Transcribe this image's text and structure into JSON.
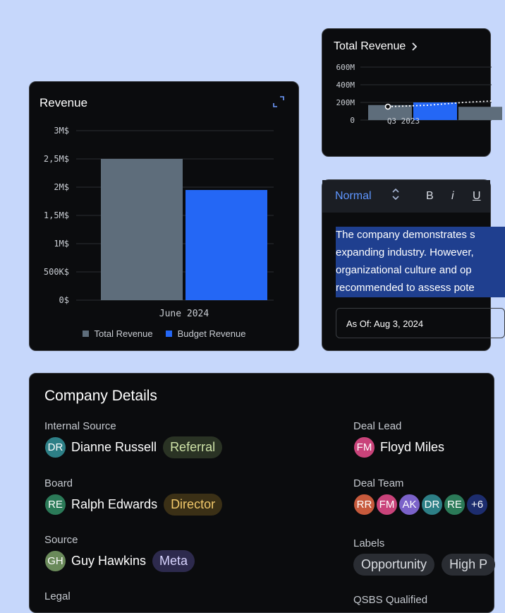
{
  "revenue_card": {
    "title": "Revenue",
    "expand_icon": "expand-icon",
    "legend": [
      {
        "label": "Total Revenue",
        "color": "#5e6d7b"
      },
      {
        "label": "Budget Revenue",
        "color": "#2467f5"
      }
    ]
  },
  "total_revenue_card": {
    "title": "Total Revenue",
    "chevron_icon": "chevron-right-icon"
  },
  "editor": {
    "style_label": "Normal",
    "bold_label": "B",
    "italic_label": "i",
    "underline_label": "U",
    "lines": [
      "The company demonstrates s",
      "expanding industry. However,",
      "organizational culture and op",
      "recommended to assess pote"
    ],
    "as_of": "As Of: Aug 3, 2024"
  },
  "company": {
    "title": "Company Details",
    "internal_source": {
      "label": "Internal Source",
      "initials": "DR",
      "name": "Dianne Russell",
      "tag": "Referral"
    },
    "board": {
      "label": "Board",
      "initials": "RE",
      "name": "Ralph Edwards",
      "tag": "Director"
    },
    "source": {
      "label": "Source",
      "initials": "GH",
      "name": "Guy Hawkins",
      "tag": "Meta"
    },
    "legal": {
      "label": "Legal"
    },
    "deal_lead": {
      "label": "Deal Lead",
      "initials": "FM",
      "name": "Floyd Miles"
    },
    "deal_team": {
      "label": "Deal Team",
      "members": [
        "RR",
        "FM",
        "AK",
        "DR",
        "RE"
      ],
      "more": "+6"
    },
    "labels": {
      "label": "Labels",
      "items": [
        "Opportunity",
        "High P"
      ]
    },
    "qsbs": {
      "label": "QSBS Qualified"
    }
  },
  "colors": {
    "total": "#5e6d7b",
    "budget": "#2467f5",
    "referral_bg": "#2a3324",
    "referral_fg": "#cfe3a8",
    "director_bg": "#3b3016",
    "director_fg": "#f2c96b",
    "meta_bg": "#2d2a4d",
    "meta_fg": "#d8d4ff"
  },
  "chart_data": [
    {
      "type": "bar",
      "title": "Revenue",
      "categories": [
        "June 2024"
      ],
      "series": [
        {
          "name": "Total Revenue",
          "values": [
            2.5
          ]
        },
        {
          "name": "Budget Revenue",
          "values": [
            1.95
          ]
        }
      ],
      "ylim": [
        0,
        3
      ],
      "yticks": [
        "0$",
        "500K$",
        "1M$",
        "1,5M$",
        "2M$",
        "2,5M$",
        "3M$"
      ],
      "grid": true,
      "legend": "bottom"
    },
    {
      "type": "bar",
      "title": "Total Revenue",
      "categories": [
        "Q3 2023"
      ],
      "series": [
        {
          "values": [
            170
          ]
        },
        {
          "values": [
            200
          ]
        },
        {
          "values": [
            150
          ]
        }
      ],
      "ylim": [
        0,
        600
      ],
      "yticks": [
        "0",
        "200M",
        "400M",
        "600M"
      ],
      "grid": true
    }
  ]
}
